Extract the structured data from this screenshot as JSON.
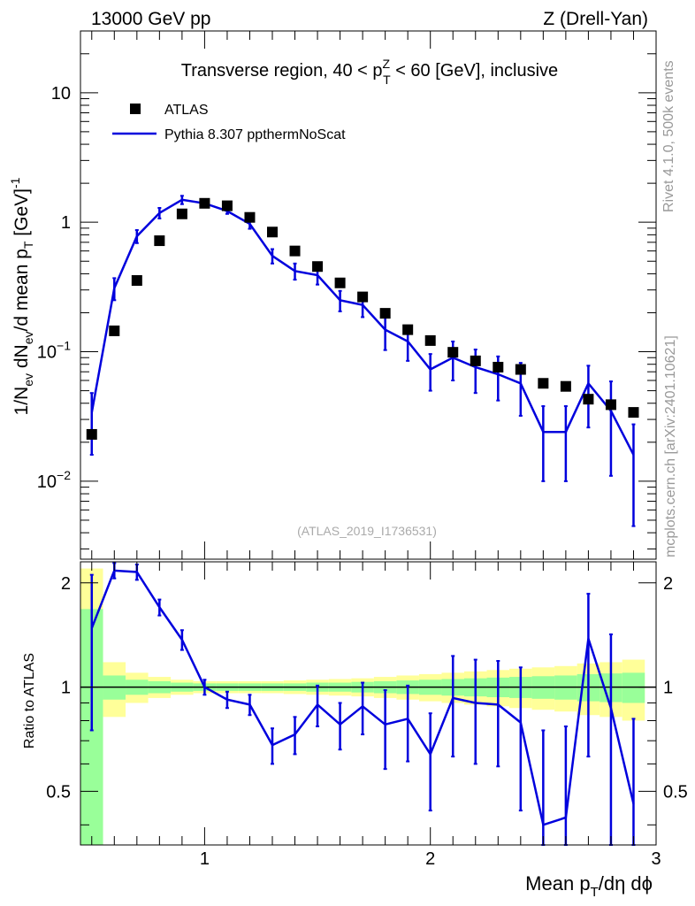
{
  "header": {
    "energy": "13000 GeV pp",
    "process": "Z (Drell-Yan)"
  },
  "side_labels": {
    "rivet": "Rivet 4.1.0,  500k events",
    "mcplots": "mcplots.cern.ch [arXiv:2401.10621]"
  },
  "colors": {
    "mc": "#0000dd",
    "data": "#000000",
    "band_inner": "#99ff99",
    "band_outer": "#ffff99"
  },
  "chart_data": [
    {
      "type": "scatter",
      "panel": "main",
      "title": "Transverse region, 40 < p_T^Z < 60 [GeV], inclusive",
      "title_parts": {
        "pre": "Transverse region, 40 < p",
        "sup": "Z",
        "sub": "T",
        "post": " < 60 [GeV], inclusive"
      },
      "analysis_id": "(ATLAS_2019_I1736531)",
      "ylabel": "1/N_ev dN_ev/d mean p_T [GeV]^-1",
      "ylabel_parts": {
        "a": "1/N",
        "a_sub": "ev",
        "b": " dN",
        "b_sub": "ev",
        "c": "/d mean p",
        "c_sub": "T",
        "d": " [GeV]",
        "d_sup": "-1"
      },
      "yscale": "log",
      "ylim": [
        0.0025,
        30
      ],
      "xlim": [
        0.45,
        3.0
      ],
      "yticks": [
        {
          "v": 10,
          "label": "10",
          "exp": ""
        },
        {
          "v": 1,
          "label": "1",
          "exp": ""
        },
        {
          "v": 0.1,
          "label": "10",
          "exp": "−1"
        },
        {
          "v": 0.01,
          "label": "10",
          "exp": "−2"
        }
      ],
      "legend": {
        "position": "top-left",
        "data_label": "ATLAS",
        "mc_label": "Pythia 8.307 ppthermNoScat"
      },
      "series": [
        {
          "name": "ATLAS",
          "style": "markers",
          "x": [
            0.5,
            0.6,
            0.7,
            0.8,
            0.9,
            1.0,
            1.1,
            1.2,
            1.3,
            1.4,
            1.5,
            1.6,
            1.7,
            1.8,
            1.9,
            2.0,
            2.1,
            2.2,
            2.3,
            2.4,
            2.5,
            2.6,
            2.7,
            2.8,
            2.9
          ],
          "y": [
            0.023,
            0.145,
            0.355,
            0.72,
            1.16,
            1.4,
            1.34,
            1.09,
            0.84,
            0.6,
            0.455,
            0.34,
            0.265,
            0.198,
            0.148,
            0.122,
            0.099,
            0.085,
            0.076,
            0.073,
            0.057,
            0.054,
            0.043,
            0.039,
            0.034
          ]
        },
        {
          "name": "Pythia 8.307 ppthermNoScat",
          "style": "line",
          "x": [
            0.5,
            0.6,
            0.7,
            0.8,
            0.9,
            1.0,
            1.1,
            1.2,
            1.3,
            1.4,
            1.5,
            1.6,
            1.7,
            1.8,
            1.9,
            2.0,
            2.1,
            2.2,
            2.3,
            2.4,
            2.5,
            2.6,
            2.7,
            2.8,
            2.9
          ],
          "y": [
            0.034,
            0.31,
            0.78,
            1.18,
            1.49,
            1.4,
            1.22,
            0.97,
            0.55,
            0.42,
            0.39,
            0.25,
            0.23,
            0.148,
            0.12,
            0.073,
            0.09,
            0.076,
            0.067,
            0.057,
            0.024,
            0.024,
            0.057,
            0.035,
            0.016
          ],
          "yerr_low": [
            0.018,
            0.06,
            0.09,
            0.11,
            0.11,
            0.06,
            0.06,
            0.08,
            0.07,
            0.06,
            0.06,
            0.045,
            0.045,
            0.045,
            0.035,
            0.023,
            0.03,
            0.028,
            0.025,
            0.025,
            0.014,
            0.014,
            0.031,
            0.024,
            0.0115
          ],
          "yerr_high": [
            0.014,
            0.06,
            0.09,
            0.11,
            0.11,
            0.06,
            0.06,
            0.08,
            0.07,
            0.06,
            0.06,
            0.045,
            0.045,
            0.045,
            0.035,
            0.023,
            0.03,
            0.028,
            0.025,
            0.025,
            0.014,
            0.014,
            0.021,
            0.024,
            0.0115
          ]
        }
      ]
    },
    {
      "type": "line",
      "panel": "ratio",
      "ylabel": "Ratio to ATLAS",
      "xlabel": "Mean p_T/dη dϕ",
      "xlabel_parts": {
        "a": "Mean p",
        "a_sub": "T",
        "b": "/dη dϕ"
      },
      "xlim": [
        0.45,
        3.0
      ],
      "ylim": [
        0.35,
        2.3
      ],
      "xticks": [
        1,
        2,
        3
      ],
      "yticks": [
        0.5,
        1,
        2
      ],
      "reference": 1,
      "band": {
        "x_edges": [
          0.45,
          0.55,
          0.65,
          0.75,
          0.85,
          0.95,
          1.05,
          1.15,
          1.25,
          1.35,
          1.45,
          1.55,
          1.65,
          1.75,
          1.85,
          1.95,
          2.05,
          2.15,
          2.25,
          2.35,
          2.45,
          2.55,
          2.65,
          2.75,
          2.85,
          2.95
        ],
        "inner_low": [
          0.3,
          0.92,
          0.95,
          0.96,
          0.97,
          0.975,
          0.975,
          0.975,
          0.975,
          0.975,
          0.97,
          0.97,
          0.965,
          0.96,
          0.955,
          0.95,
          0.945,
          0.94,
          0.935,
          0.93,
          0.925,
          0.92,
          0.91,
          0.905,
          0.9
        ],
        "inner_high": [
          1.68,
          1.08,
          1.05,
          1.04,
          1.03,
          1.025,
          1.025,
          1.025,
          1.025,
          1.025,
          1.03,
          1.03,
          1.035,
          1.04,
          1.045,
          1.05,
          1.055,
          1.06,
          1.065,
          1.07,
          1.075,
          1.08,
          1.09,
          1.095,
          1.1
        ],
        "outer_low": [
          0.3,
          0.82,
          0.9,
          0.93,
          0.95,
          0.96,
          0.96,
          0.96,
          0.96,
          0.955,
          0.95,
          0.945,
          0.94,
          0.93,
          0.92,
          0.91,
          0.9,
          0.89,
          0.88,
          0.87,
          0.86,
          0.85,
          0.83,
          0.82,
          0.8
        ],
        "outer_high": [
          2.2,
          1.18,
          1.1,
          1.07,
          1.05,
          1.04,
          1.04,
          1.04,
          1.04,
          1.045,
          1.05,
          1.055,
          1.06,
          1.07,
          1.08,
          1.09,
          1.1,
          1.11,
          1.12,
          1.13,
          1.14,
          1.15,
          1.17,
          1.18,
          1.2
        ]
      },
      "series": [
        {
          "name": "Pythia 8.307 ppthermNoScat / ATLAS",
          "x": [
            0.5,
            0.6,
            0.7,
            0.8,
            0.9,
            1.0,
            1.1,
            1.2,
            1.3,
            1.4,
            1.5,
            1.6,
            1.7,
            1.8,
            1.9,
            2.0,
            2.1,
            2.2,
            2.3,
            2.4,
            2.5,
            2.6,
            2.7,
            2.8,
            2.9
          ],
          "y": [
            1.48,
            2.17,
            2.15,
            1.7,
            1.37,
            1.0,
            0.92,
            0.89,
            0.68,
            0.73,
            0.89,
            0.78,
            0.88,
            0.78,
            0.81,
            0.64,
            0.93,
            0.9,
            0.89,
            0.79,
            0.4,
            0.42,
            1.38,
            0.87,
            0.46
          ],
          "yerr_low": [
            0.73,
            0.11,
            0.11,
            0.09,
            0.09,
            0.05,
            0.05,
            0.06,
            0.08,
            0.09,
            0.12,
            0.12,
            0.15,
            0.2,
            0.2,
            0.2,
            0.3,
            0.3,
            0.3,
            0.35,
            0.35,
            0.35,
            0.75,
            0.55,
            0.35
          ],
          "yerr_high": [
            0.63,
            0.11,
            0.11,
            0.09,
            0.09,
            0.05,
            0.05,
            0.06,
            0.08,
            0.09,
            0.12,
            0.12,
            0.15,
            0.2,
            0.2,
            0.2,
            0.3,
            0.3,
            0.3,
            0.35,
            0.35,
            0.35,
            0.48,
            0.55,
            0.35
          ]
        }
      ]
    }
  ]
}
